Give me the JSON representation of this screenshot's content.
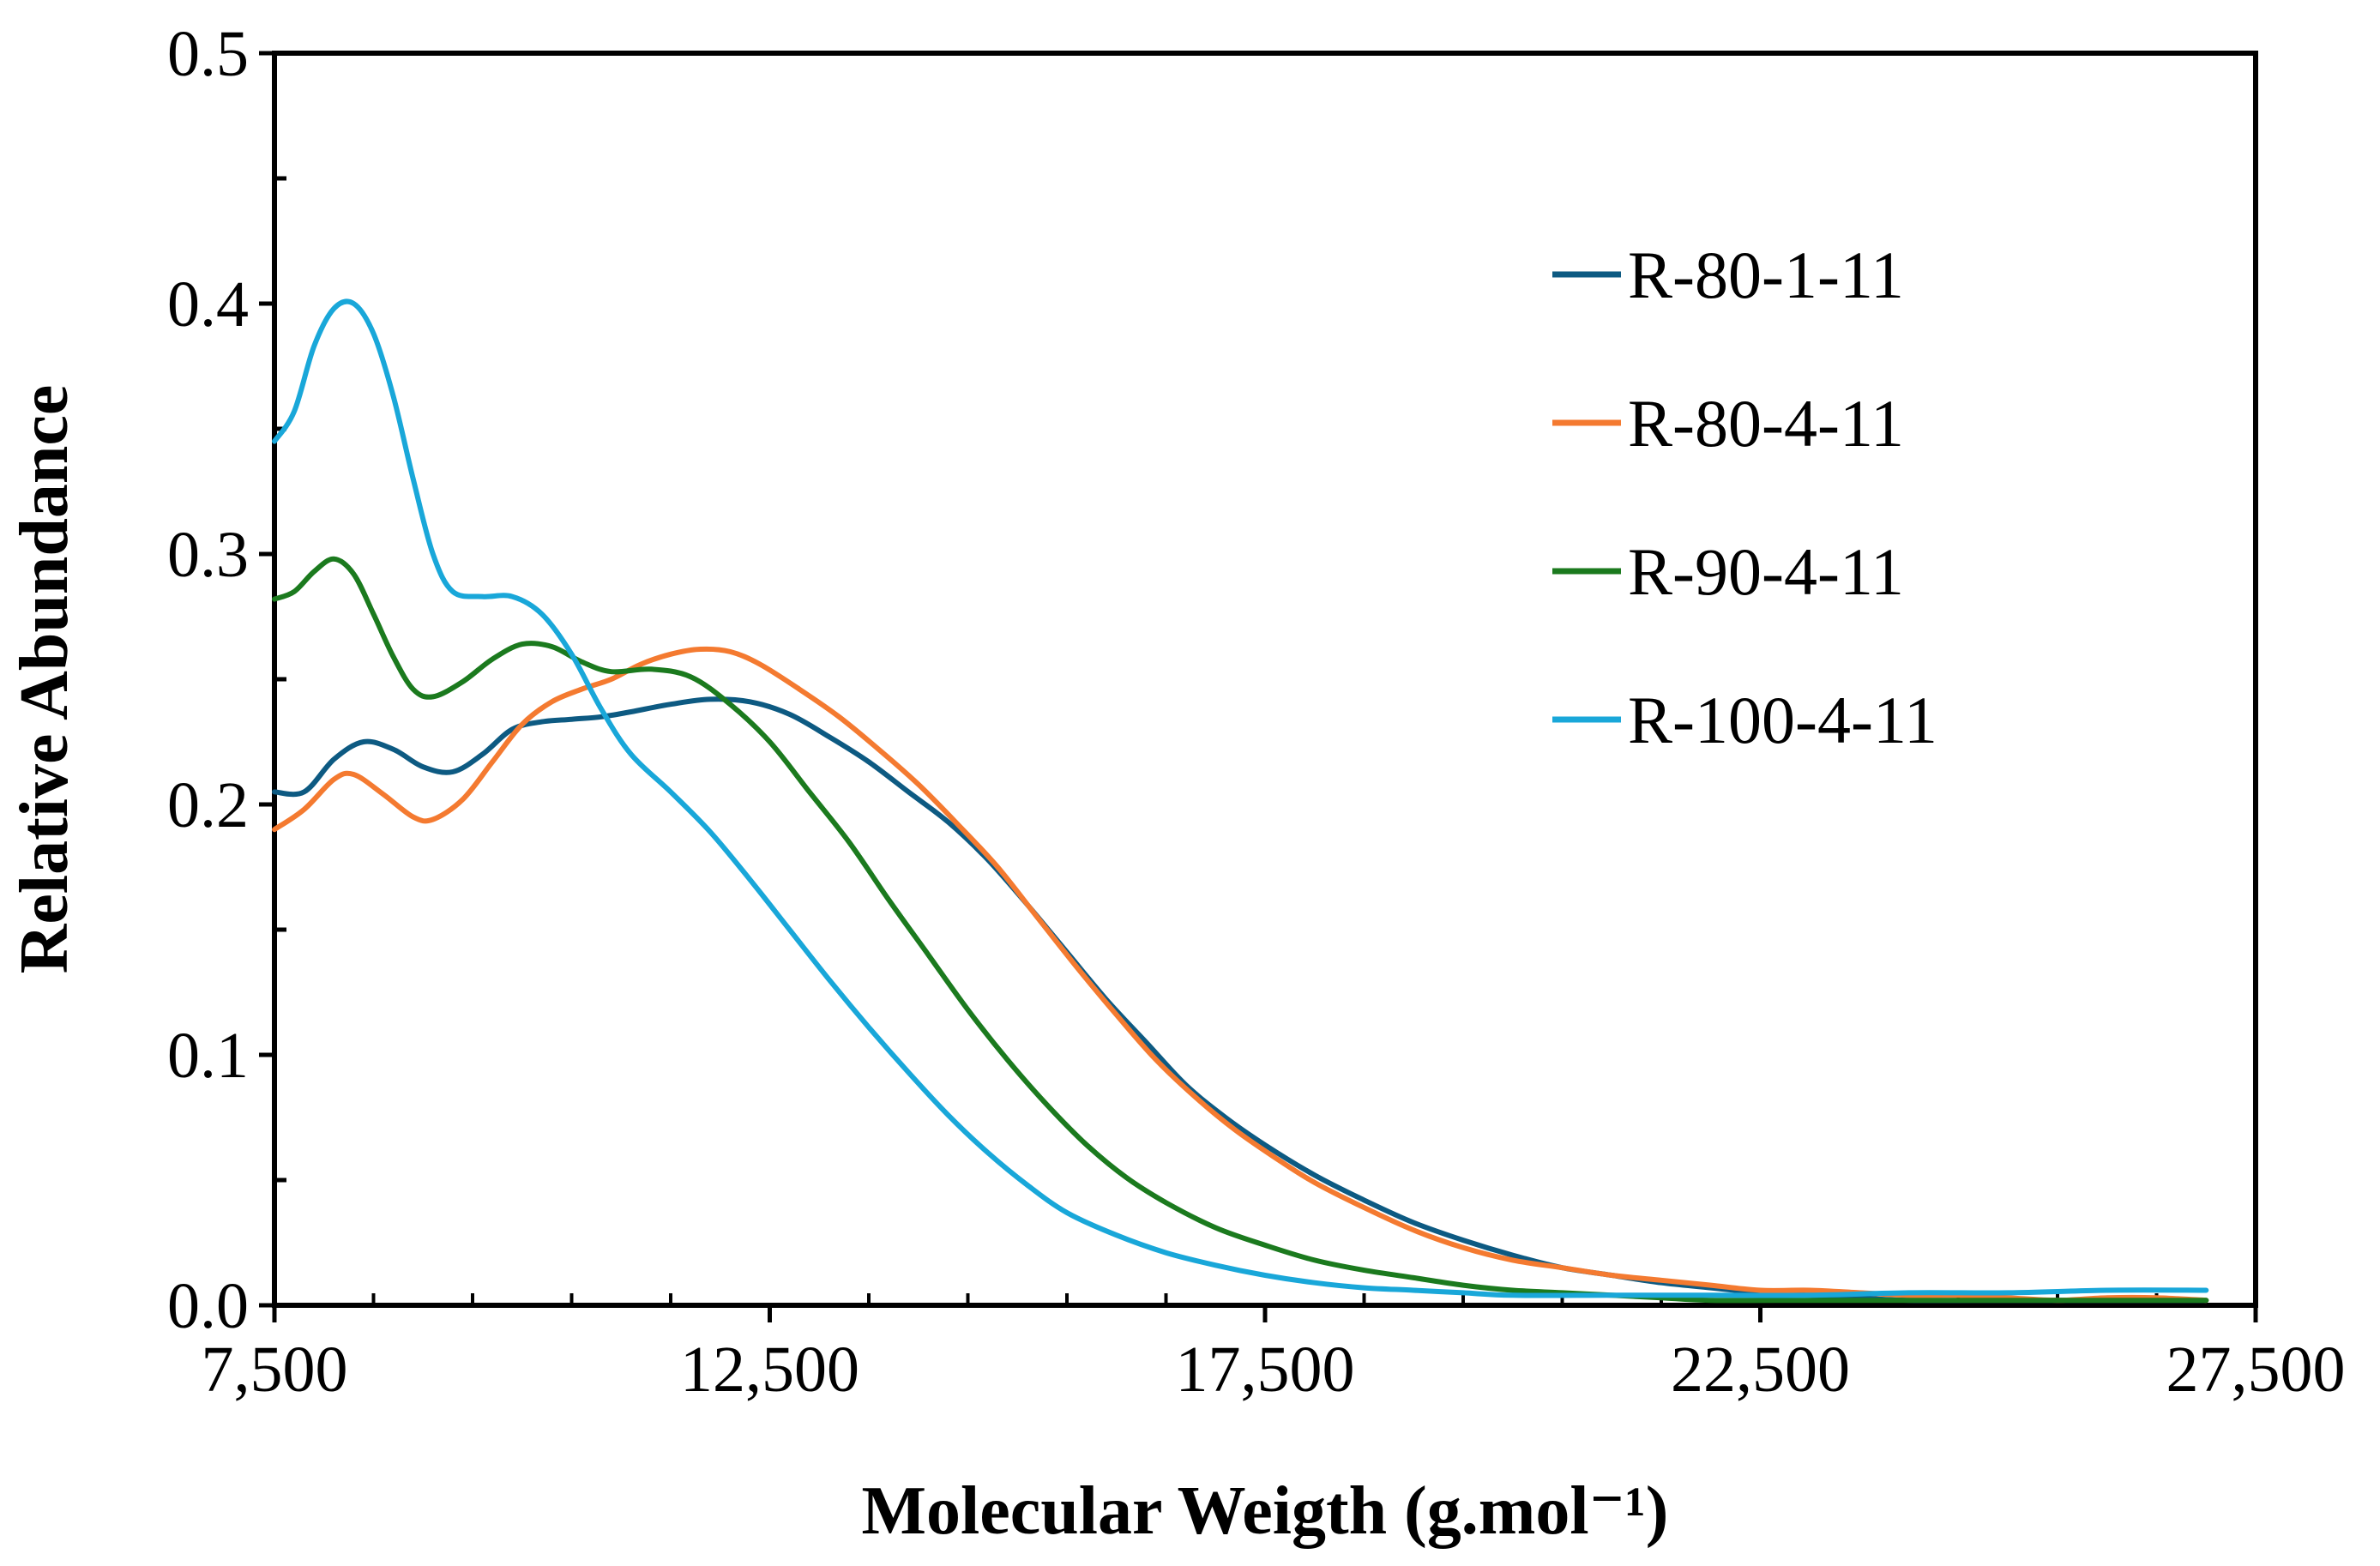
{
  "chart_data": {
    "type": "line",
    "title": "",
    "xlabel": "Molecular Weigth (g.mol⁻¹)",
    "ylabel": "Relative Abundance",
    "xlim": [
      7500,
      27500
    ],
    "ylim": [
      0,
      0.5
    ],
    "xticks": [
      7500,
      12500,
      17500,
      22500,
      27500
    ],
    "xtick_labels": [
      "7,500",
      "12,500",
      "17,500",
      "22,500",
      "27,500"
    ],
    "yticks": [
      0,
      0.1,
      0.2,
      0.3,
      0.4,
      0.5
    ],
    "ytick_labels": [
      "0.0",
      "0.1",
      "0.2",
      "0.3",
      "0.4",
      "0.5"
    ],
    "legend_position": "top-right",
    "series": [
      {
        "name": "R-80-1-11",
        "color": "#0d5a82",
        "points": [
          [
            7500,
            0.205
          ],
          [
            7800,
            0.205
          ],
          [
            8100,
            0.218
          ],
          [
            8400,
            0.225
          ],
          [
            8700,
            0.222
          ],
          [
            9000,
            0.215
          ],
          [
            9300,
            0.213
          ],
          [
            9600,
            0.22
          ],
          [
            9900,
            0.23
          ],
          [
            10200,
            0.233
          ],
          [
            10500,
            0.234
          ],
          [
            10800,
            0.235
          ],
          [
            11100,
            0.237
          ],
          [
            11500,
            0.24
          ],
          [
            11900,
            0.242
          ],
          [
            12300,
            0.241
          ],
          [
            12700,
            0.236
          ],
          [
            13100,
            0.227
          ],
          [
            13500,
            0.217
          ],
          [
            13900,
            0.205
          ],
          [
            14300,
            0.193
          ],
          [
            14700,
            0.178
          ],
          [
            15100,
            0.16
          ],
          [
            15500,
            0.141
          ],
          [
            15900,
            0.122
          ],
          [
            16300,
            0.105
          ],
          [
            16700,
            0.088
          ],
          [
            17100,
            0.075
          ],
          [
            17500,
            0.064
          ],
          [
            18000,
            0.052
          ],
          [
            18500,
            0.042
          ],
          [
            19000,
            0.033
          ],
          [
            19500,
            0.026
          ],
          [
            20000,
            0.02
          ],
          [
            20500,
            0.015
          ],
          [
            21000,
            0.012
          ],
          [
            21500,
            0.009
          ],
          [
            22000,
            0.007
          ],
          [
            22500,
            0.005
          ],
          [
            23000,
            0.004
          ],
          [
            23500,
            0.003
          ],
          [
            24000,
            0.002
          ],
          [
            25000,
            0.002
          ],
          [
            26000,
            0.002
          ],
          [
            27000,
            0.002
          ]
        ]
      },
      {
        "name": "R-80-4-11",
        "color": "#f47a30",
        "points": [
          [
            7500,
            0.19
          ],
          [
            7800,
            0.198
          ],
          [
            8100,
            0.21
          ],
          [
            8300,
            0.212
          ],
          [
            8600,
            0.204
          ],
          [
            8900,
            0.195
          ],
          [
            9100,
            0.194
          ],
          [
            9400,
            0.202
          ],
          [
            9700,
            0.217
          ],
          [
            10000,
            0.232
          ],
          [
            10300,
            0.241
          ],
          [
            10600,
            0.246
          ],
          [
            10900,
            0.25
          ],
          [
            11200,
            0.256
          ],
          [
            11500,
            0.26
          ],
          [
            11800,
            0.262
          ],
          [
            12100,
            0.261
          ],
          [
            12400,
            0.256
          ],
          [
            12800,
            0.246
          ],
          [
            13200,
            0.235
          ],
          [
            13600,
            0.222
          ],
          [
            14000,
            0.208
          ],
          [
            14400,
            0.192
          ],
          [
            14800,
            0.175
          ],
          [
            15200,
            0.155
          ],
          [
            15600,
            0.135
          ],
          [
            16000,
            0.116
          ],
          [
            16400,
            0.098
          ],
          [
            16800,
            0.083
          ],
          [
            17200,
            0.07
          ],
          [
            17600,
            0.059
          ],
          [
            18000,
            0.049
          ],
          [
            18500,
            0.039
          ],
          [
            19000,
            0.03
          ],
          [
            19500,
            0.023
          ],
          [
            20000,
            0.018
          ],
          [
            20500,
            0.015
          ],
          [
            21000,
            0.012
          ],
          [
            21500,
            0.01
          ],
          [
            22000,
            0.008
          ],
          [
            22500,
            0.006
          ],
          [
            23000,
            0.006
          ],
          [
            23500,
            0.005
          ],
          [
            24000,
            0.004
          ],
          [
            24500,
            0.004
          ],
          [
            25000,
            0.003
          ],
          [
            25500,
            0.002
          ],
          [
            26000,
            0.003
          ],
          [
            26500,
            0.003
          ],
          [
            27000,
            0.002
          ]
        ]
      },
      {
        "name": "R-90-4-11",
        "color": "#1b7a1e",
        "points": [
          [
            7500,
            0.282
          ],
          [
            7700,
            0.285
          ],
          [
            7900,
            0.293
          ],
          [
            8100,
            0.298
          ],
          [
            8300,
            0.292
          ],
          [
            8500,
            0.276
          ],
          [
            8700,
            0.259
          ],
          [
            8900,
            0.246
          ],
          [
            9100,
            0.243
          ],
          [
            9400,
            0.249
          ],
          [
            9700,
            0.258
          ],
          [
            10000,
            0.264
          ],
          [
            10300,
            0.263
          ],
          [
            10600,
            0.257
          ],
          [
            10900,
            0.253
          ],
          [
            11300,
            0.254
          ],
          [
            11700,
            0.251
          ],
          [
            12100,
            0.24
          ],
          [
            12500,
            0.225
          ],
          [
            12900,
            0.205
          ],
          [
            13300,
            0.185
          ],
          [
            13700,
            0.162
          ],
          [
            14100,
            0.14
          ],
          [
            14500,
            0.118
          ],
          [
            14900,
            0.098
          ],
          [
            15300,
            0.08
          ],
          [
            15700,
            0.064
          ],
          [
            16100,
            0.051
          ],
          [
            16500,
            0.041
          ],
          [
            17000,
            0.031
          ],
          [
            17500,
            0.024
          ],
          [
            18000,
            0.018
          ],
          [
            18500,
            0.014
          ],
          [
            19000,
            0.011
          ],
          [
            19500,
            0.008
          ],
          [
            20000,
            0.006
          ],
          [
            20500,
            0.005
          ],
          [
            21000,
            0.004
          ],
          [
            21500,
            0.003
          ],
          [
            22000,
            0.002
          ],
          [
            23000,
            0.002
          ],
          [
            24000,
            0.002
          ],
          [
            25000,
            0.002
          ],
          [
            26000,
            0.002
          ],
          [
            27000,
            0.002
          ]
        ]
      },
      {
        "name": "R-100-4-11",
        "color": "#19a7d9",
        "points": [
          [
            7500,
            0.345
          ],
          [
            7700,
            0.357
          ],
          [
            7900,
            0.383
          ],
          [
            8100,
            0.398
          ],
          [
            8300,
            0.4
          ],
          [
            8500,
            0.388
          ],
          [
            8700,
            0.363
          ],
          [
            8900,
            0.33
          ],
          [
            9100,
            0.3
          ],
          [
            9300,
            0.285
          ],
          [
            9600,
            0.283
          ],
          [
            9900,
            0.283
          ],
          [
            10200,
            0.276
          ],
          [
            10500,
            0.26
          ],
          [
            10800,
            0.238
          ],
          [
            11100,
            0.22
          ],
          [
            11500,
            0.205
          ],
          [
            11900,
            0.189
          ],
          [
            12300,
            0.17
          ],
          [
            12700,
            0.15
          ],
          [
            13100,
            0.13
          ],
          [
            13500,
            0.111
          ],
          [
            13900,
            0.093
          ],
          [
            14300,
            0.076
          ],
          [
            14700,
            0.061
          ],
          [
            15100,
            0.048
          ],
          [
            15500,
            0.037
          ],
          [
            16000,
            0.028
          ],
          [
            16500,
            0.021
          ],
          [
            17000,
            0.016
          ],
          [
            17500,
            0.012
          ],
          [
            18000,
            0.009
          ],
          [
            18500,
            0.007
          ],
          [
            19000,
            0.006
          ],
          [
            19500,
            0.005
          ],
          [
            20000,
            0.004
          ],
          [
            21000,
            0.004
          ],
          [
            22000,
            0.004
          ],
          [
            23000,
            0.004
          ],
          [
            24000,
            0.005
          ],
          [
            25000,
            0.005
          ],
          [
            26000,
            0.006
          ],
          [
            27000,
            0.006
          ]
        ]
      }
    ]
  }
}
